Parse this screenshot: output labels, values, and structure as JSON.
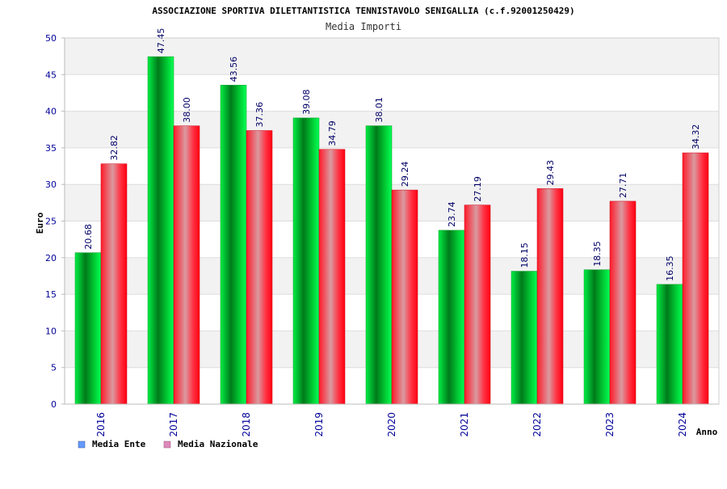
{
  "chart_data": {
    "type": "bar",
    "title": "ASSOCIAZIONE SPORTIVA DILETTANTISTICA TENNISTAVOLO SENIGALLIA (c.f.92001250429)",
    "subtitle": "Media Importi",
    "xlabel": "Anno",
    "ylabel": "Euro",
    "ylim": [
      0,
      50
    ],
    "yticks": [
      "0",
      "5",
      "10",
      "15",
      "20",
      "25",
      "30",
      "35",
      "40",
      "45",
      "50"
    ],
    "grid": "horizontal-bands",
    "legend_position": "bottom-left",
    "categories": [
      "2016",
      "2017",
      "2018",
      "2019",
      "2020",
      "2021",
      "2022",
      "2023",
      "2024"
    ],
    "series": [
      {
        "name": "Media Ente",
        "color": "#00cc33",
        "legend_color": "#6699ff",
        "values": [
          20.68,
          47.45,
          43.56,
          39.08,
          38.01,
          23.74,
          18.15,
          18.35,
          16.35
        ],
        "labels": [
          "20.68",
          "47.45",
          "43.56",
          "39.08",
          "38.01",
          "23.74",
          "18.15",
          "18.35",
          "16.35"
        ]
      },
      {
        "name": "Media Nazionale",
        "color": "#ff2233",
        "legend_color": "#dd88bb",
        "values": [
          32.82,
          38.0,
          37.36,
          34.79,
          29.24,
          27.19,
          29.43,
          27.71,
          34.32
        ],
        "labels": [
          "32.82",
          "38.00",
          "37.36",
          "34.79",
          "29.24",
          "27.19",
          "29.43",
          "27.71",
          "34.32"
        ]
      }
    ]
  }
}
